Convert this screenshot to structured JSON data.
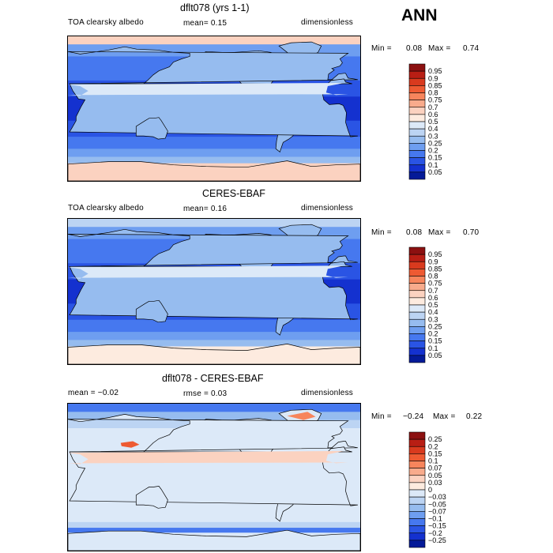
{
  "season": "ANN",
  "chart_data": [
    {
      "type": "heatmap",
      "title": "dflt078 (yrs 1-1)",
      "left": "TOA clearsky albedo",
      "mean": "mean=   0.15",
      "units": "dimensionless",
      "min_label": "Min =",
      "min_value": "0.08",
      "max_label": "Max =",
      "max_value": "0.74",
      "levels": [
        "0.95",
        "0.9",
        "0.85",
        "0.8",
        "0.75",
        "0.7",
        "0.6",
        "0.5",
        "0.4",
        "0.3",
        "0.25",
        "0.2",
        "0.15",
        "0.1",
        "0.05"
      ],
      "colors": [
        "#8c1010",
        "#b81e14",
        "#d93a1e",
        "#ee5a32",
        "#f7855c",
        "#f8ab8c",
        "#fbd2c0",
        "#fdebdf",
        "#dce9f8",
        "#bcd4f3",
        "#96bcef",
        "#6e9ef0",
        "#4678ef",
        "#2a54e4",
        "#1431cf",
        "#041a98"
      ],
      "field": "model"
    },
    {
      "type": "heatmap",
      "title": "CERES-EBAF",
      "left": "TOA clearsky albedo",
      "mean": "mean=   0.16",
      "units": "dimensionless",
      "min_label": "Min =",
      "min_value": "0.08",
      "max_label": "Max =",
      "max_value": "0.70",
      "levels": [
        "0.95",
        "0.9",
        "0.85",
        "0.8",
        "0.75",
        "0.7",
        "0.6",
        "0.5",
        "0.4",
        "0.3",
        "0.25",
        "0.2",
        "0.15",
        "0.1",
        "0.05"
      ],
      "colors": [
        "#8c1010",
        "#b81e14",
        "#d93a1e",
        "#ee5a32",
        "#f7855c",
        "#f8ab8c",
        "#fbd2c0",
        "#fdebdf",
        "#dce9f8",
        "#bcd4f3",
        "#96bcef",
        "#6e9ef0",
        "#4678ef",
        "#2a54e4",
        "#1431cf",
        "#041a98"
      ],
      "field": "obs"
    },
    {
      "type": "heatmap",
      "title": "dflt078 - CERES-EBAF",
      "left": "mean =  −0.02",
      "mean": "rmse =   0.03",
      "units": "dimensionless",
      "min_label": "Min =",
      "min_value": "−0.24",
      "max_label": "Max =",
      "max_value": "0.22",
      "levels": [
        "0.25",
        "0.2",
        "0.15",
        "0.1",
        "0.07",
        "0.05",
        "0.03",
        "0",
        "−0.03",
        "−0.05",
        "−0.07",
        "−0.1",
        "−0.15",
        "−0.2",
        "−0.25"
      ],
      "colors": [
        "#8c1010",
        "#b81e14",
        "#d93a1e",
        "#ee5a32",
        "#f7855c",
        "#f8ab8c",
        "#fbd2c0",
        "#fdebdf",
        "#dce9f8",
        "#bcd4f3",
        "#96bcef",
        "#6e9ef0",
        "#4678ef",
        "#2a54e4",
        "#1431cf",
        "#041a98"
      ],
      "field": "diff"
    }
  ]
}
